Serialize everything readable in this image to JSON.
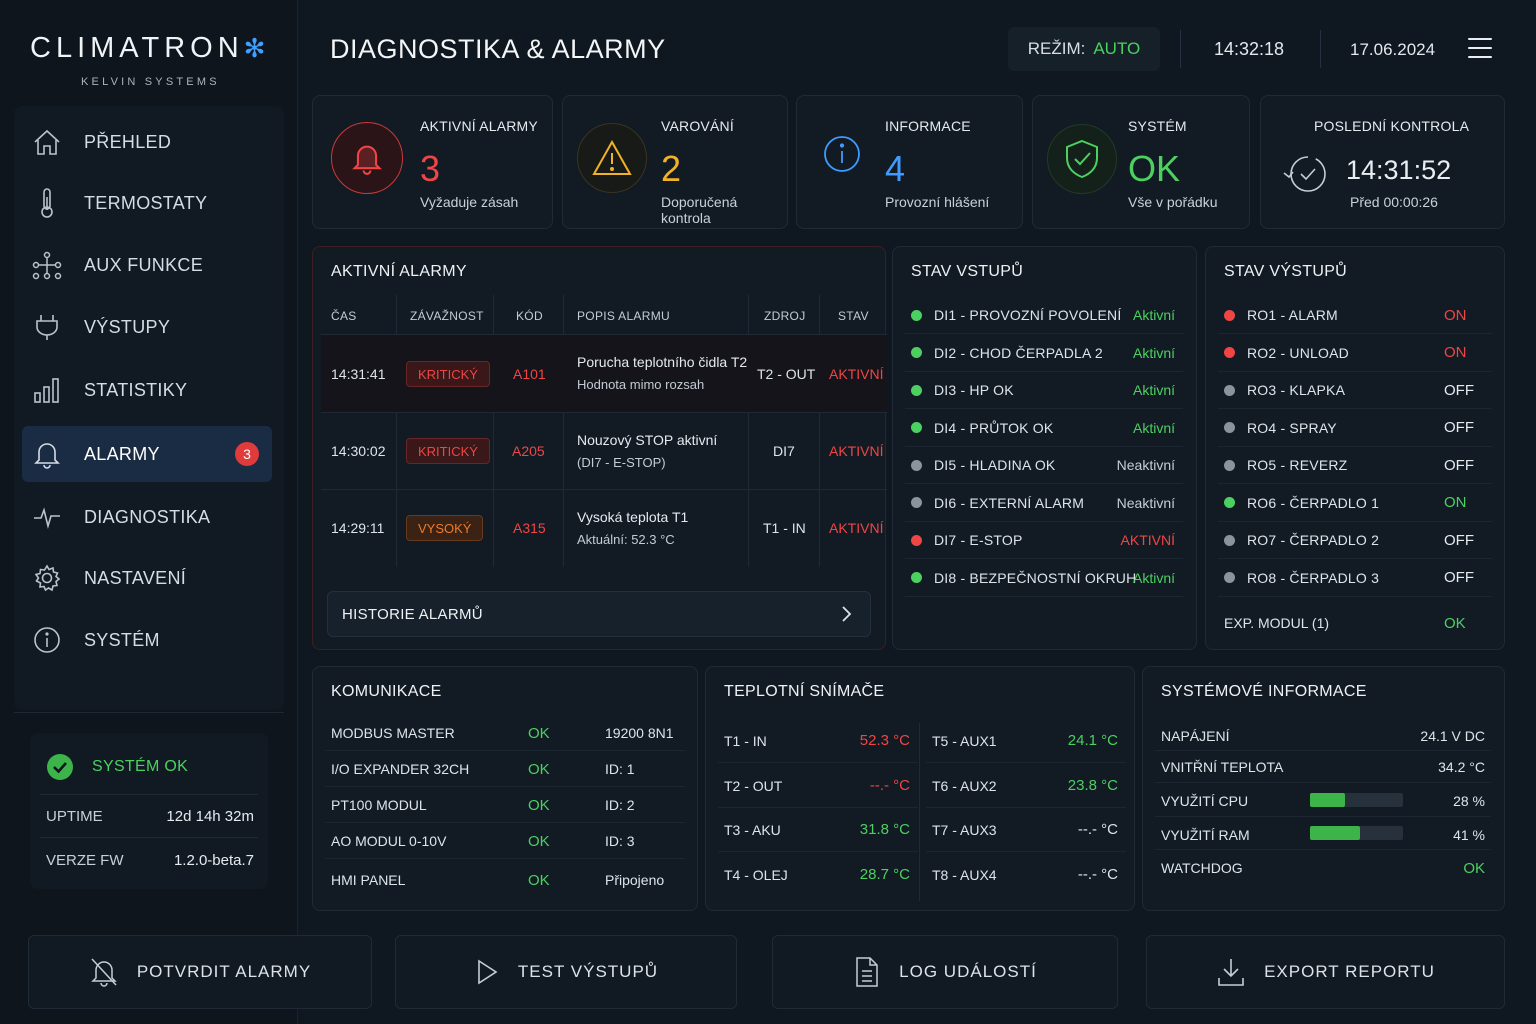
{
  "brand": {
    "name": "CLIMATRON",
    "flake": "*",
    "sub": "KELVIN SYSTEMS"
  },
  "nav": [
    {
      "label": "PŘEHLED",
      "icon": "home-icon"
    },
    {
      "label": "TERMOSTATY",
      "icon": "thermometer-icon"
    },
    {
      "label": "AUX FUNKCE",
      "icon": "network-icon"
    },
    {
      "label": "VÝSTUPY",
      "icon": "plug-icon"
    },
    {
      "label": "STATISTIKY",
      "icon": "bar-chart-icon"
    },
    {
      "label": "ALARMY",
      "icon": "bell-icon",
      "badge": "3",
      "active": true
    },
    {
      "label": "DIAGNOSTIKA",
      "icon": "pulse-icon"
    },
    {
      "label": "NASTAVENÍ",
      "icon": "gear-icon"
    },
    {
      "label": "SYSTÉM",
      "icon": "info-icon"
    }
  ],
  "system_box": {
    "status": "SYSTÉM OK",
    "uptime_label": "UPTIME",
    "uptime_value": "12d 14h 32m",
    "fw_label": "VERZE FW",
    "fw_value": "1.2.0-beta.7"
  },
  "header": {
    "title": "DIAGNOSTIKA & ALARMY",
    "mode_label": "REŽIM:",
    "mode_value": "AUTO",
    "time": "14:32:18",
    "date": "17.06.2024"
  },
  "stats": [
    {
      "title": "AKTIVNÍ ALARMY",
      "value": "3",
      "sub": "Vyžaduje zásah",
      "color": "#f04545"
    },
    {
      "title": "VAROVÁNÍ",
      "value": "2",
      "sub": "Doporučená kontrola",
      "color": "#f2b228"
    },
    {
      "title": "INFORMACE",
      "value": "4",
      "sub": "Provozní hlášení",
      "color": "#3f9bff"
    },
    {
      "title": "SYSTÉM",
      "value": "OK",
      "sub": "Vše v pořádku",
      "color": "#4cd060"
    },
    {
      "title": "POSLEDNÍ KONTROLA",
      "value": "14:31:52",
      "sub": "Před 00:00:26"
    }
  ],
  "alarms": {
    "title": "AKTIVNÍ ALARMY",
    "columns": [
      "ČAS",
      "ZÁVAŽNOST",
      "KÓD",
      "POPIS ALARMU",
      "ZDROJ",
      "STAV"
    ],
    "rows": [
      {
        "time": "14:31:41",
        "severity": "KRITICKÝ",
        "code": "A101",
        "desc1": "Porucha teplotního čidla T2",
        "desc2": "Hodnota mimo rozsah",
        "source": "T2 - OUT",
        "state": "AKTIVNÍ",
        "sev_color": "#f04545"
      },
      {
        "time": "14:30:02",
        "severity": "KRITICKÝ",
        "code": "A205",
        "desc1": "Nouzový STOP aktivní",
        "desc2": "(DI7 - E-STOP)",
        "source": "DI7",
        "state": "AKTIVNÍ",
        "sev_color": "#f04545"
      },
      {
        "time": "14:29:11",
        "severity": "VYSOKÝ",
        "code": "A315",
        "desc1": "Vysoká teplota T1",
        "desc2": "Aktuální: 52.3 °C",
        "source": "T1 - IN",
        "state": "AKTIVNÍ",
        "sev_color": "#f07a28"
      }
    ],
    "history_label": "HISTORIE ALARMŮ"
  },
  "inputs": {
    "title": "STAV VSTUPŮ",
    "rows": [
      {
        "name": "DI1 - PROVOZNÍ POVOLENÍ",
        "value": "Aktivní",
        "state": "green"
      },
      {
        "name": "DI2 - CHOD ČERPADLA 2",
        "value": "Aktivní",
        "state": "green"
      },
      {
        "name": "DI3 - HP OK",
        "value": "Aktivní",
        "state": "green"
      },
      {
        "name": "DI4 - PRŮTOK OK",
        "value": "Aktivní",
        "state": "green"
      },
      {
        "name": "DI5 - HLADINA OK",
        "value": "Neaktivní",
        "state": "gray"
      },
      {
        "name": "DI6 - EXTERNÍ ALARM",
        "value": "Neaktivní",
        "state": "gray"
      },
      {
        "name": "DI7 - E-STOP",
        "value": "AKTIVNÍ",
        "state": "red"
      },
      {
        "name": "DI8 - BEZPEČNOSTNÍ OKRUH",
        "value": "Aktivní",
        "state": "green"
      }
    ]
  },
  "outputs": {
    "title": "STAV VÝSTUPŮ",
    "rows": [
      {
        "name": "RO1 - ALARM",
        "value": "ON",
        "state": "red"
      },
      {
        "name": "RO2 - UNLOAD",
        "value": "ON",
        "state": "red"
      },
      {
        "name": "RO3 - KLAPKA",
        "value": "OFF",
        "state": "gray"
      },
      {
        "name": "RO4 - SPRAY",
        "value": "OFF",
        "state": "gray"
      },
      {
        "name": "RO5 - REVERZ",
        "value": "OFF",
        "state": "gray"
      },
      {
        "name": "RO6 - ČERPADLO 1",
        "value": "ON",
        "state": "green"
      },
      {
        "name": "RO7 - ČERPADLO 2",
        "value": "OFF",
        "state": "gray"
      },
      {
        "name": "RO8 - ČERPADLO 3",
        "value": "OFF",
        "state": "gray"
      }
    ],
    "exp_label": "EXP. MODUL (1)",
    "exp_value": "OK"
  },
  "comm": {
    "title": "KOMUNIKACE",
    "rows": [
      {
        "name": "MODBUS MASTER",
        "status": "OK",
        "detail": "19200 8N1"
      },
      {
        "name": "I/O EXPANDER 32CH",
        "status": "OK",
        "detail": "ID: 1"
      },
      {
        "name": "PT100 MODUL",
        "status": "OK",
        "detail": "ID: 2"
      },
      {
        "name": "AO MODUL 0-10V",
        "status": "OK",
        "detail": "ID: 3"
      },
      {
        "name": "HMI PANEL",
        "status": "OK",
        "detail": "Připojeno"
      }
    ]
  },
  "temps": {
    "title": "TEPLOTNÍ SNÍMAČE",
    "left": [
      {
        "name": "T1 - IN",
        "value": "52.3 °C",
        "state": "red"
      },
      {
        "name": "T2 - OUT",
        "value": "--.- °C",
        "state": "red"
      },
      {
        "name": "T3 - AKU",
        "value": "31.8 °C",
        "state": "green"
      },
      {
        "name": "T4 - OLEJ",
        "value": "28.7 °C",
        "state": "green"
      }
    ],
    "right": [
      {
        "name": "T5 - AUX1",
        "value": "24.1 °C",
        "state": "green"
      },
      {
        "name": "T6 - AUX2",
        "value": "23.8 °C",
        "state": "green"
      },
      {
        "name": "T7 - AUX3",
        "value": "--.- °C",
        "state": "gray"
      },
      {
        "name": "T8 - AUX4",
        "value": "--.- °C",
        "state": "gray"
      }
    ]
  },
  "sysinfo": {
    "title": "SYSTÉMOVÉ INFORMACE",
    "power_label": "NAPÁJENÍ",
    "power_value": "24.1 V DC",
    "temp_label": "VNITŘNÍ TEPLOTA",
    "temp_value": "34.2 °C",
    "cpu_label": "VYUŽITÍ CPU",
    "cpu_value": "28 %",
    "cpu_fraction": 0.28,
    "ram_label": "VYUŽITÍ RAM",
    "ram_value": "41 %",
    "ram_fraction": 0.41,
    "watchdog_label": "WATCHDOG",
    "watchdog_value": "OK"
  },
  "footer": [
    {
      "label": "POTVRDIT ALARMY",
      "icon": "bell-off-icon"
    },
    {
      "label": "TEST VÝSTUPŮ",
      "icon": "play-icon"
    },
    {
      "label": "LOG UDÁLOSTÍ",
      "icon": "document-icon"
    },
    {
      "label": "EXPORT REPORTU",
      "icon": "download-icon"
    }
  ],
  "colors": {
    "green": "#4cd060",
    "red": "#f04545",
    "amber": "#f2b228",
    "blue": "#3f9bff",
    "gray": "#c5cdd4",
    "dot_gray": "#8b949c"
  }
}
